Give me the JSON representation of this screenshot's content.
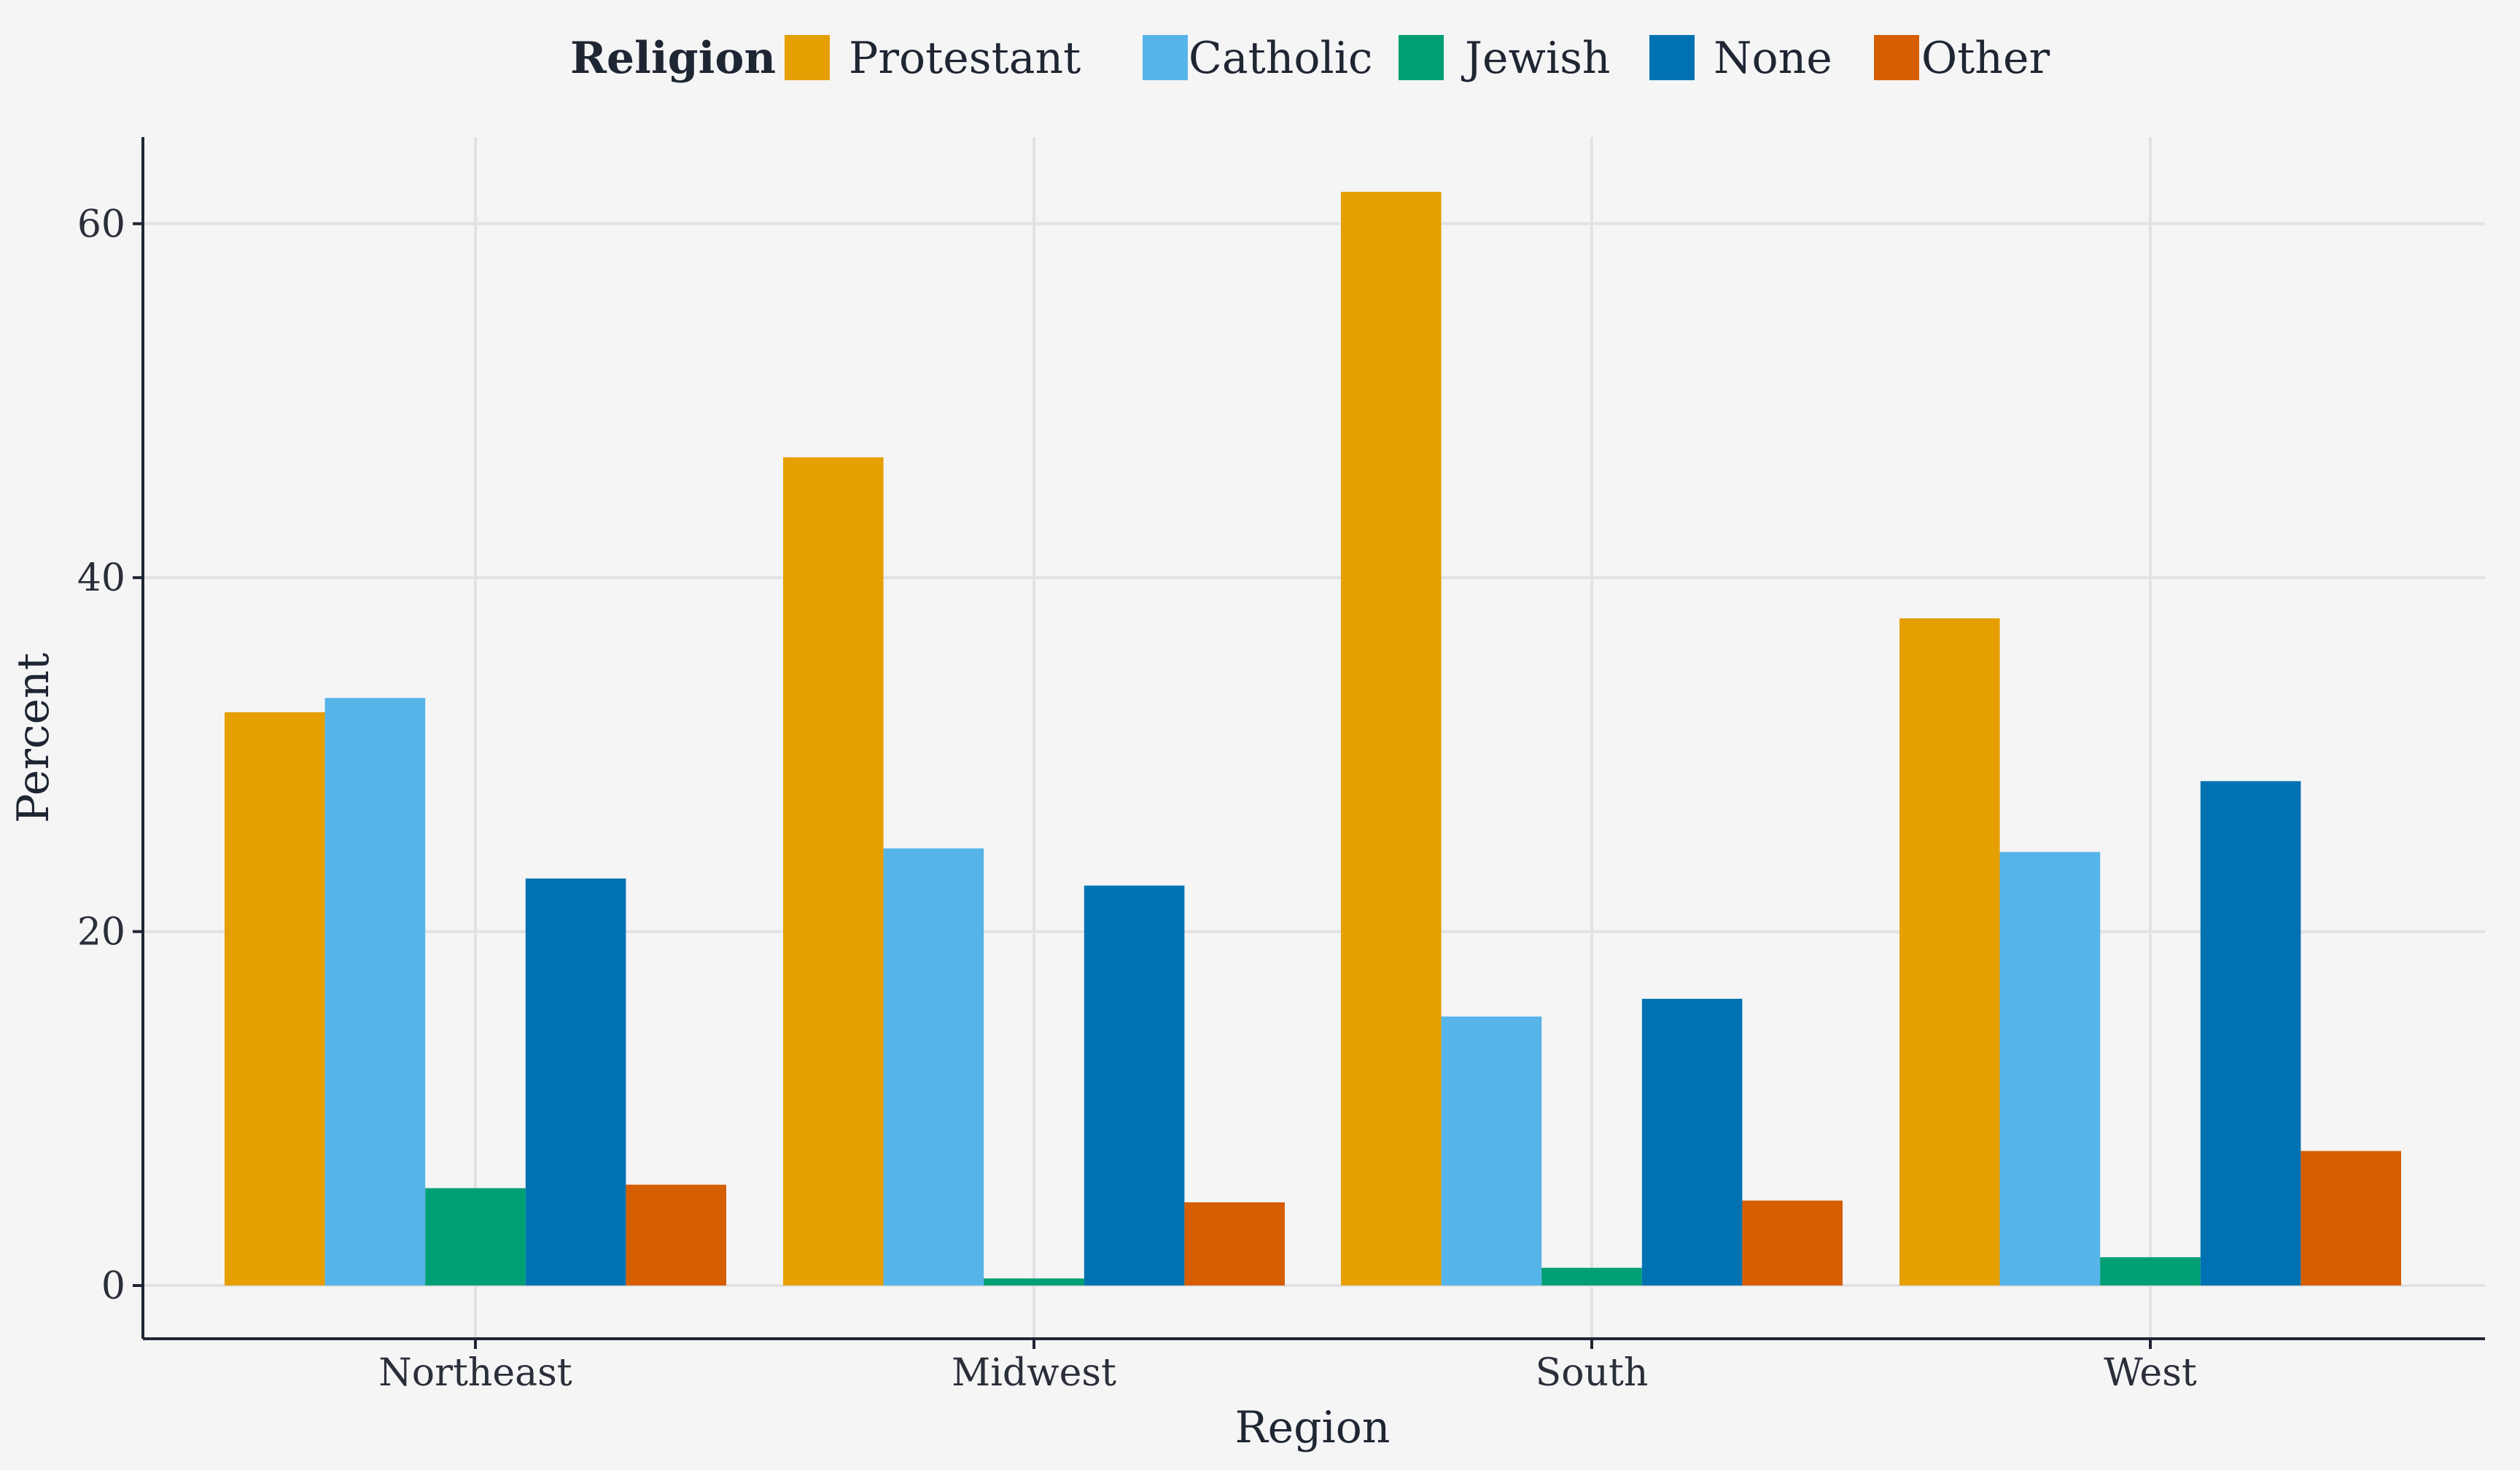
{
  "chart_data": {
    "type": "bar",
    "xlabel": "Region",
    "ylabel": "Percent",
    "legend": {
      "title": "Religion",
      "position": "top"
    },
    "categories": [
      "Northeast",
      "Midwest",
      "South",
      "West"
    ],
    "series": [
      {
        "name": "Protestant",
        "color": "#E69F00",
        "values": [
          32.4,
          46.8,
          61.8,
          37.7
        ]
      },
      {
        "name": "Catholic",
        "color": "#56B4E9",
        "values": [
          33.2,
          24.7,
          15.2,
          24.5
        ]
      },
      {
        "name": "Jewish",
        "color": "#009E73",
        "values": [
          5.5,
          0.4,
          1.0,
          1.6
        ]
      },
      {
        "name": "None",
        "color": "#0072B2",
        "values": [
          23.0,
          22.6,
          16.2,
          28.5
        ]
      },
      {
        "name": "Other",
        "color": "#D55E00",
        "values": [
          5.7,
          4.7,
          4.8,
          7.6
        ]
      }
    ],
    "yticks": [
      0,
      20,
      40,
      60
    ],
    "ylim": [
      -3,
      65
    ],
    "grid": true
  }
}
